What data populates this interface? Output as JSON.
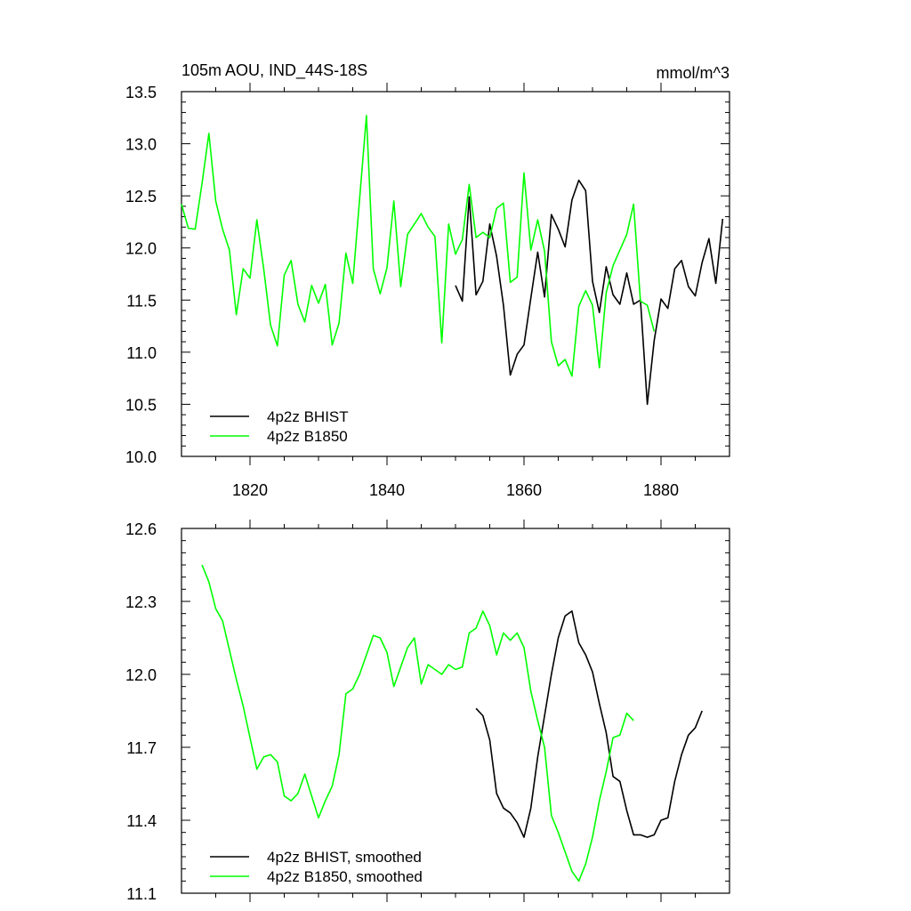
{
  "chart_data": [
    {
      "type": "line",
      "title_left": "105m AOU, IND_44S-18S",
      "title_right": "mmol/m^3",
      "xlabel": "",
      "ylabel": "",
      "xlim": [
        1810,
        1890
      ],
      "ylim": [
        10.0,
        13.5
      ],
      "x_ticks": [
        1820,
        1840,
        1860,
        1880
      ],
      "x_tick_labels": [
        "1820",
        "1840",
        "1860",
        "1880"
      ],
      "y_ticks": [
        10.0,
        10.5,
        11.0,
        11.5,
        12.0,
        12.5,
        13.0,
        13.5
      ],
      "y_tick_labels": [
        "10.0",
        "10.5",
        "11.0",
        "11.5",
        "12.0",
        "12.5",
        "13.0",
        "13.5"
      ],
      "legend_position": "bottom-left",
      "series": [
        {
          "name": "4p2z BHIST",
          "color": "#000000",
          "x": [
            1850,
            1851,
            1852,
            1853,
            1854,
            1855,
            1856,
            1857,
            1858,
            1859,
            1860,
            1861,
            1862,
            1863,
            1864,
            1865,
            1866,
            1867,
            1868,
            1869,
            1870,
            1871,
            1872,
            1873,
            1874,
            1875,
            1876,
            1877,
            1878,
            1879,
            1880,
            1881,
            1882,
            1883,
            1884,
            1885,
            1886,
            1887,
            1888,
            1889
          ],
          "y": [
            11.64,
            11.49,
            12.49,
            11.55,
            11.68,
            12.23,
            11.92,
            11.45,
            10.78,
            10.98,
            11.07,
            11.52,
            11.96,
            11.53,
            12.32,
            12.18,
            12.01,
            12.46,
            12.65,
            12.55,
            11.68,
            11.38,
            11.82,
            11.55,
            11.46,
            11.76,
            11.46,
            11.5,
            10.5,
            11.11,
            11.51,
            11.42,
            11.8,
            11.88,
            11.63,
            11.54,
            11.86,
            12.09,
            11.66,
            12.28
          ]
        },
        {
          "name": "4p2z B1850",
          "color": "#00ff00",
          "x": [
            1810,
            1811,
            1812,
            1813,
            1814,
            1815,
            1816,
            1817,
            1818,
            1819,
            1820,
            1821,
            1822,
            1823,
            1824,
            1825,
            1826,
            1827,
            1828,
            1829,
            1830,
            1831,
            1832,
            1833,
            1834,
            1835,
            1836,
            1837,
            1838,
            1839,
            1840,
            1841,
            1842,
            1843,
            1844,
            1845,
            1846,
            1847,
            1848,
            1849,
            1850,
            1851,
            1852,
            1853,
            1854,
            1855,
            1856,
            1857,
            1858,
            1859,
            1860,
            1861,
            1862,
            1863,
            1864,
            1865,
            1866,
            1867,
            1868,
            1869,
            1870,
            1871,
            1872,
            1873,
            1874,
            1875,
            1876,
            1877,
            1878,
            1879
          ],
          "y": [
            12.42,
            12.19,
            12.18,
            12.62,
            13.1,
            12.45,
            12.18,
            11.98,
            11.36,
            11.8,
            11.71,
            12.27,
            11.8,
            11.26,
            11.06,
            11.74,
            11.88,
            11.46,
            11.29,
            11.64,
            11.47,
            11.65,
            11.07,
            11.28,
            11.95,
            11.66,
            12.47,
            13.27,
            11.8,
            11.56,
            11.81,
            12.45,
            11.63,
            12.13,
            12.23,
            12.33,
            12.2,
            12.11,
            11.09,
            12.23,
            11.94,
            12.08,
            12.61,
            12.1,
            12.15,
            12.1,
            12.38,
            12.43,
            11.67,
            11.72,
            12.72,
            11.98,
            12.27,
            11.97,
            11.1,
            10.87,
            10.93,
            10.77,
            11.44,
            11.59,
            11.45,
            10.85,
            11.57,
            11.83,
            11.98,
            12.13,
            12.42,
            11.49,
            11.45,
            11.2
          ]
        }
      ]
    },
    {
      "type": "line",
      "title_left": "",
      "title_right": "",
      "xlabel": "",
      "ylabel": "",
      "xlim": [
        1810,
        1890
      ],
      "ylim": [
        11.1,
        12.6
      ],
      "x_ticks": [
        1820,
        1840,
        1860,
        1880
      ],
      "y_ticks": [
        11.1,
        11.4,
        11.7,
        12.0,
        12.3,
        12.6
      ],
      "y_tick_labels": [
        "11.1",
        "11.4",
        "11.7",
        "12.0",
        "12.3",
        "12.6"
      ],
      "legend_position": "bottom-left",
      "series": [
        {
          "name": "4p2z BHIST, smoothed",
          "color": "#000000",
          "x": [
            1853,
            1854,
            1855,
            1856,
            1857,
            1858,
            1859,
            1860,
            1861,
            1862,
            1863,
            1864,
            1865,
            1866,
            1867,
            1868,
            1869,
            1870,
            1871,
            1872,
            1873,
            1874,
            1875,
            1876,
            1877,
            1878,
            1879,
            1880,
            1881,
            1882,
            1883,
            1884,
            1885,
            1886
          ],
          "y": [
            11.86,
            11.83,
            11.73,
            11.51,
            11.45,
            11.43,
            11.39,
            11.33,
            11.45,
            11.66,
            11.83,
            12.0,
            12.15,
            12.24,
            12.26,
            12.13,
            12.08,
            12.01,
            11.88,
            11.76,
            11.58,
            11.56,
            11.44,
            11.34,
            11.34,
            11.33,
            11.34,
            11.4,
            11.41,
            11.56,
            11.67,
            11.75,
            11.78,
            11.85
          ]
        },
        {
          "name": "4p2z B1850, smoothed",
          "color": "#00ff00",
          "x": [
            1813,
            1814,
            1815,
            1816,
            1817,
            1818,
            1819,
            1820,
            1821,
            1822,
            1823,
            1824,
            1825,
            1826,
            1827,
            1828,
            1829,
            1830,
            1831,
            1832,
            1833,
            1834,
            1835,
            1836,
            1837,
            1838,
            1839,
            1840,
            1841,
            1842,
            1843,
            1844,
            1845,
            1846,
            1847,
            1848,
            1849,
            1850,
            1851,
            1852,
            1853,
            1854,
            1855,
            1856,
            1857,
            1858,
            1859,
            1860,
            1861,
            1862,
            1863,
            1864,
            1865,
            1866,
            1867,
            1868,
            1869,
            1870,
            1871,
            1872,
            1873,
            1874,
            1875,
            1876
          ],
          "y": [
            12.45,
            12.38,
            12.27,
            12.22,
            12.1,
            11.98,
            11.87,
            11.74,
            11.61,
            11.66,
            11.67,
            11.64,
            11.5,
            11.48,
            11.51,
            11.59,
            11.5,
            11.41,
            11.48,
            11.54,
            11.67,
            11.92,
            11.94,
            12.0,
            12.08,
            12.16,
            12.15,
            12.09,
            11.95,
            12.03,
            12.11,
            12.15,
            11.96,
            12.04,
            12.02,
            12.0,
            12.04,
            12.02,
            12.03,
            12.17,
            12.19,
            12.26,
            12.2,
            12.08,
            12.17,
            12.14,
            12.17,
            12.11,
            11.93,
            11.81,
            11.7,
            11.42,
            11.35,
            11.27,
            11.19,
            11.15,
            11.22,
            11.33,
            11.48,
            11.6,
            11.74,
            11.75,
            11.84,
            11.81
          ]
        }
      ]
    }
  ]
}
